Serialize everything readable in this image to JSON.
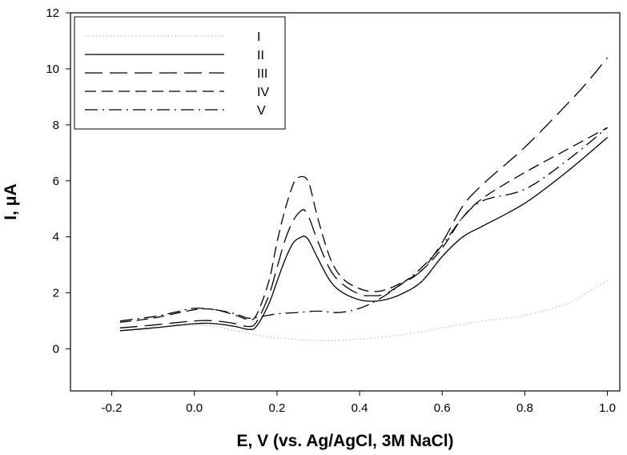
{
  "chart_data": {
    "type": "line",
    "title": "",
    "xlabel": "E, V (vs. Ag/AgCl, 3M NaCl)",
    "ylabel": "I, μA",
    "xlim": [
      -0.3,
      1.03
    ],
    "ylim": [
      -1.5,
      12
    ],
    "x_ticks": [
      "-0.2",
      "0.0",
      "0.2",
      "0.4",
      "0.6",
      "0.8",
      "1.0"
    ],
    "y_ticks": [
      "0",
      "2",
      "4",
      "6",
      "8",
      "10",
      "12"
    ],
    "grid": false,
    "legend_position": "top-left",
    "series": [
      {
        "name": "I",
        "line_style": "dotted",
        "color": "#c8c8c8",
        "x": [
          -0.18,
          -0.1,
          0.0,
          0.05,
          0.1,
          0.15,
          0.2,
          0.3,
          0.4,
          0.5,
          0.6,
          0.7,
          0.8,
          0.9,
          0.95,
          1.0
        ],
        "y": [
          0.65,
          0.75,
          0.85,
          0.8,
          0.65,
          0.5,
          0.4,
          0.3,
          0.35,
          0.5,
          0.75,
          1.0,
          1.2,
          1.6,
          2.0,
          2.45
        ]
      },
      {
        "name": "II",
        "line_style": "solid",
        "color": "#000000",
        "x": [
          -0.18,
          -0.1,
          0.0,
          0.05,
          0.1,
          0.13,
          0.15,
          0.18,
          0.2,
          0.22,
          0.24,
          0.26,
          0.27,
          0.28,
          0.3,
          0.33,
          0.36,
          0.4,
          0.43,
          0.46,
          0.5,
          0.55,
          0.6,
          0.65,
          0.7,
          0.8,
          0.9,
          1.0
        ],
        "y": [
          0.65,
          0.75,
          0.9,
          0.9,
          0.8,
          0.7,
          0.8,
          1.6,
          2.4,
          3.2,
          3.8,
          4.0,
          4.0,
          3.8,
          3.2,
          2.4,
          2.0,
          1.75,
          1.7,
          1.75,
          1.95,
          2.4,
          3.3,
          4.0,
          4.4,
          5.2,
          6.3,
          7.55
        ]
      },
      {
        "name": "III",
        "line_style": "long-dash",
        "color": "#000000",
        "x": [
          -0.18,
          -0.1,
          0.0,
          0.05,
          0.1,
          0.13,
          0.15,
          0.18,
          0.2,
          0.22,
          0.24,
          0.26,
          0.27,
          0.28,
          0.3,
          0.33,
          0.36,
          0.4,
          0.43,
          0.46,
          0.5,
          0.55,
          0.6,
          0.65,
          0.7,
          0.8,
          0.9,
          0.95,
          1.0
        ],
        "y": [
          0.75,
          0.85,
          1.0,
          1.0,
          0.9,
          0.8,
          0.95,
          1.9,
          2.9,
          3.9,
          4.6,
          4.95,
          4.9,
          4.6,
          3.8,
          2.8,
          2.3,
          1.95,
          1.9,
          1.95,
          2.3,
          2.8,
          3.8,
          5.1,
          5.9,
          7.2,
          8.7,
          9.5,
          10.4
        ]
      },
      {
        "name": "IV",
        "line_style": "dash",
        "color": "#000000",
        "x": [
          -0.18,
          -0.1,
          0.0,
          0.05,
          0.1,
          0.13,
          0.15,
          0.18,
          0.2,
          0.22,
          0.24,
          0.25,
          0.26,
          0.27,
          0.28,
          0.3,
          0.33,
          0.36,
          0.4,
          0.43,
          0.46,
          0.5,
          0.55,
          0.6,
          0.65,
          0.7,
          0.8,
          0.9,
          1.0
        ],
        "y": [
          0.95,
          1.1,
          1.4,
          1.4,
          1.2,
          1.05,
          1.2,
          2.4,
          3.8,
          5.0,
          5.9,
          6.1,
          6.15,
          6.1,
          5.8,
          4.6,
          3.2,
          2.5,
          2.15,
          2.05,
          2.1,
          2.35,
          2.8,
          3.6,
          4.7,
          5.4,
          6.3,
          7.1,
          7.9
        ]
      },
      {
        "name": "V",
        "line_style": "dash-dot",
        "color": "#000000",
        "x": [
          -0.18,
          -0.1,
          -0.05,
          0.0,
          0.05,
          0.1,
          0.13,
          0.16,
          0.2,
          0.25,
          0.3,
          0.35,
          0.4,
          0.45,
          0.5,
          0.55,
          0.6,
          0.65,
          0.7,
          0.8,
          0.9,
          1.0
        ],
        "y": [
          1.0,
          1.15,
          1.3,
          1.45,
          1.4,
          1.25,
          1.1,
          1.15,
          1.25,
          1.3,
          1.35,
          1.3,
          1.45,
          1.8,
          2.3,
          2.9,
          3.7,
          4.7,
          5.3,
          5.7,
          6.7,
          7.9
        ]
      }
    ]
  }
}
